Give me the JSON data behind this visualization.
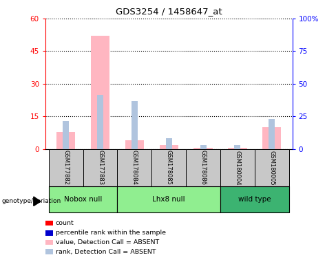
{
  "title": "GDS3254 / 1458647_at",
  "samples": [
    "GSM177882",
    "GSM177883",
    "GSM178084",
    "GSM178085",
    "GSM178086",
    "GSM180004",
    "GSM180005"
  ],
  "value_absent": [
    8.0,
    52.0,
    4.0,
    2.0,
    0.5,
    0.5,
    10.0
  ],
  "rank_absent": [
    13.0,
    25.0,
    22.0,
    5.0,
    2.0,
    2.0,
    14.0
  ],
  "left_ylim": [
    0,
    60
  ],
  "right_ylim": [
    0,
    100
  ],
  "left_yticks": [
    0,
    15,
    30,
    45,
    60
  ],
  "right_yticks": [
    0,
    25,
    50,
    75,
    100
  ],
  "right_yticklabels": [
    "0",
    "25",
    "50",
    "75",
    "100%"
  ],
  "left_ytick_labels": [
    "0",
    "15",
    "30",
    "45",
    "60"
  ],
  "group_labels": [
    "Nobox null",
    "Lhx8 null",
    "wild type"
  ],
  "group_ranges": [
    [
      0,
      2
    ],
    [
      2,
      5
    ],
    [
      5,
      7
    ]
  ],
  "group_colors": [
    "#90EE90",
    "#90EE90",
    "#3CB371"
  ],
  "color_value_absent": "#FFB6C1",
  "color_rank_absent": "#B0C4DE",
  "color_count": "#FF0000",
  "color_percentile": "#0000CD",
  "left_tick_color": "#FF0000",
  "right_tick_color": "#0000FF",
  "legend_items": [
    [
      "#FF0000",
      "count"
    ],
    [
      "#0000CD",
      "percentile rank within the sample"
    ],
    [
      "#FFB6C1",
      "value, Detection Call = ABSENT"
    ],
    [
      "#B0C4DE",
      "rank, Detection Call = ABSENT"
    ]
  ]
}
